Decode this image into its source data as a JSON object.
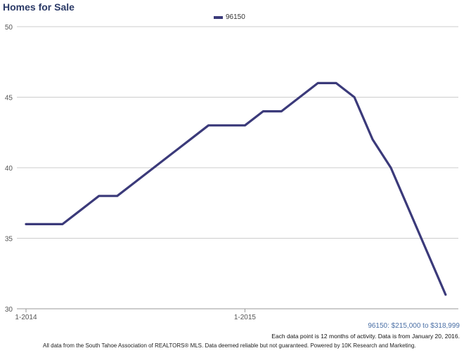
{
  "chart_data": {
    "type": "line",
    "title": "Homes for Sale",
    "xlabel": "",
    "ylabel": "",
    "ylim": [
      30,
      50
    ],
    "yticks": [
      "50",
      "45",
      "40",
      "35",
      "30"
    ],
    "xticks": [
      "1-2014",
      "1-2015"
    ],
    "grid": "horizontal",
    "legend_position": "top-center",
    "x": [
      "1-2014",
      "2-2014",
      "3-2014",
      "4-2014",
      "5-2014",
      "6-2014",
      "7-2014",
      "8-2014",
      "9-2014",
      "10-2014",
      "11-2014",
      "12-2014",
      "1-2015",
      "2-2015",
      "3-2015",
      "4-2015",
      "5-2015",
      "6-2015",
      "7-2015",
      "8-2015",
      "9-2015",
      "10-2015",
      "11-2015",
      "12-2015"
    ],
    "series": [
      {
        "name": "96150",
        "color": "#3b3a7a",
        "values": [
          36,
          36,
          36,
          37,
          38,
          38,
          39,
          40,
          41,
          42,
          43,
          43,
          43,
          44,
          44,
          45,
          46,
          46,
          45,
          42,
          40,
          37,
          34,
          31
        ]
      }
    ]
  },
  "footer": {
    "range": "96150: $215,000 to $318,999",
    "note": "Each data point is 12 months of activity. Data is from January 20, 2016.",
    "disclaimer": "All data from the South Tahoe Association of REALTORS® MLS. Data deemed reliable but not guaranteed. Powered by 10K Research and Marketing."
  }
}
